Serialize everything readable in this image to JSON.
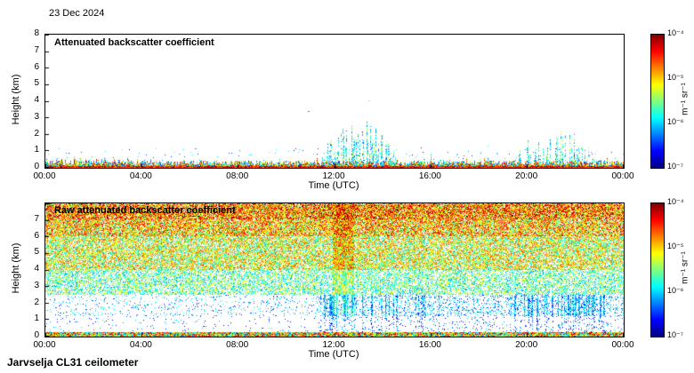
{
  "header": {
    "date": "23 Dec 2024"
  },
  "footer": {
    "instrument": "Jarvselja CL31 ceilometer"
  },
  "chart_data": [
    {
      "type": "heatmap",
      "title": "Attenuated backscatter coefficient",
      "xlabel": "Time (UTC)",
      "ylabel": "Height (km)",
      "xlim": [
        0,
        24
      ],
      "ylim": [
        0,
        8
      ],
      "xtick_labels": [
        "00:00",
        "04:00",
        "08:00",
        "12:00",
        "16:00",
        "20:00",
        "00:00"
      ],
      "ytick_labels": [
        "0",
        "1",
        "2",
        "3",
        "4",
        "5",
        "6",
        "7",
        "8"
      ],
      "colorbar": {
        "scale": "log",
        "min_value": "1e-7",
        "max_value": "1e-4",
        "tick_labels": [
          "10⁻⁴",
          "10⁻⁵",
          "10⁻⁶",
          "10⁻⁷"
        ],
        "units": "m⁻¹ sr⁻¹",
        "colormap": "jet"
      },
      "features": [
        {
          "name": "boundary-layer-aerosol",
          "hours": [
            0,
            24
          ],
          "height_km": [
            0,
            0.5
          ],
          "note": "continuous mixed red/yellow/green/blue band at surface, thicker 00:00-04:00"
        },
        {
          "name": "midday-echoes",
          "hours": [
            11.5,
            14.6
          ],
          "height_km": [
            0,
            3
          ],
          "note": "blue-green vertical spikes up to 3 km"
        },
        {
          "name": "afternoon-specks",
          "hours": [
            15,
            16.7
          ],
          "height_km": [
            0,
            1
          ],
          "note": "sparse blue specks"
        },
        {
          "name": "evening-echoes",
          "hours": [
            19.3,
            23.2
          ],
          "height_km": [
            0,
            2.3
          ],
          "note": "blue-green structures up to ~2.3 km"
        }
      ],
      "render": {
        "seed": 42,
        "surface_band_km": [
          0.1,
          0.4
        ],
        "echo_regions": [
          {
            "hours": [
              11.4,
              14.6
            ],
            "max_km": 3.0,
            "density": 0.6
          },
          {
            "hours": [
              14.9,
              16.7
            ],
            "max_km": 0.9,
            "density": 0.3
          },
          {
            "hours": [
              19.3,
              23.2
            ],
            "max_km": 2.3,
            "density": 0.55
          }
        ],
        "motes": [
          {
            "hour": 10.9,
            "km": 3.35,
            "t": 0.8
          },
          {
            "hour": 13.4,
            "km": 4.0,
            "t": 0.5
          },
          {
            "hour": 6.2,
            "km": 1.1,
            "t": 0.3
          }
        ]
      }
    },
    {
      "type": "heatmap",
      "title": "Raw attenuated backscatter coefficient",
      "xlabel": "Time (UTC)",
      "ylabel": "Height (km)",
      "xlim": [
        0,
        24
      ],
      "ylim": [
        0,
        8
      ],
      "xtick_labels": [
        "00:00",
        "04:00",
        "08:00",
        "12:00",
        "16:00",
        "20:00",
        "00:00"
      ],
      "ytick_labels": [
        "0",
        "1",
        "2",
        "3",
        "4",
        "5",
        "6",
        "7"
      ],
      "colorbar": {
        "scale": "log",
        "min_value": "1e-7",
        "max_value": "1e-4",
        "tick_labels": [
          "10⁻⁴",
          "10⁻⁵",
          "10⁻⁶",
          "10⁻⁷"
        ],
        "units": "m⁻¹ sr⁻¹",
        "colormap": "jet"
      },
      "features": [
        {
          "name": "range-dependent-noise",
          "note": "speckle density and intensity increase with height; green/yellow/orange/red above ~4 km, cyan/green 2.5-4 km, sparse blue below"
        },
        {
          "name": "clear-morning-zone",
          "hours": [
            0,
            11.3
          ],
          "height_km": [
            0.4,
            2.5
          ],
          "note": "mostly white with sparse blue specks"
        },
        {
          "name": "echo-columns",
          "hours": [
            11.4,
            23.2
          ],
          "height_km": [
            0.3,
            2.5
          ],
          "note": "vertical blue speckle columns after midday"
        },
        {
          "name": "surface-return",
          "height_km": [
            0,
            0.25
          ],
          "note": "solid multicolour band along the bottom"
        }
      ],
      "render": {
        "seed": 7,
        "surface_band_km": 0.25,
        "clear_until_hour": 11.3,
        "clear_morning_factor": 0.4,
        "bright_hours": [
          11.9,
          12.8
        ],
        "noise_profile": [
          {
            "km": [
              0.25,
              1.2
            ],
            "p": 0.06,
            "t": [
              0.05,
              0.35
            ]
          },
          {
            "km": [
              1.2,
              2.5
            ],
            "p": 0.2,
            "t": [
              0.12,
              0.45
            ]
          },
          {
            "km": [
              2.5,
              4
            ],
            "p": 0.52,
            "t": [
              0.25,
              0.65
            ]
          },
          {
            "km": [
              4,
              6
            ],
            "p": 0.72,
            "t": [
              0.33,
              0.82
            ]
          },
          {
            "km": [
              6,
              7
            ],
            "p": 0.84,
            "t": [
              0.4,
              0.92
            ]
          },
          {
            "km": [
              7,
              8.1
            ],
            "p": 0.9,
            "t": [
              0.45,
              1.0
            ]
          }
        ],
        "echo_regions": [
          {
            "hours": [
              11.4,
              14.6
            ],
            "density": 0.6
          },
          {
            "hours": [
              14.9,
              16.7
            ],
            "density": 0.3
          },
          {
            "hours": [
              19.3,
              23.2
            ],
            "density": 0.55
          }
        ]
      }
    }
  ]
}
